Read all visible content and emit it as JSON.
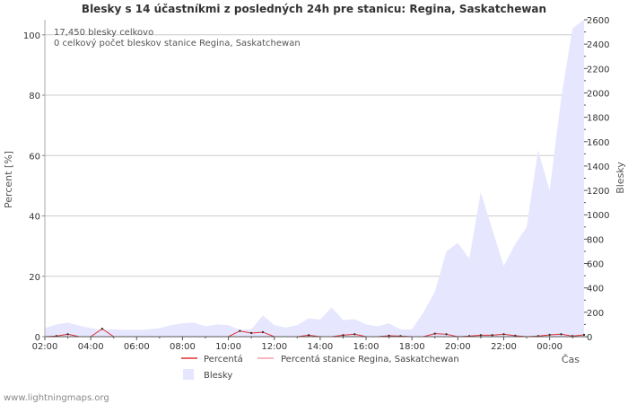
{
  "chart_data": {
    "type": "area",
    "title": "Blesky s 14 účastníkmi z posledných 24h pre stanicu: Regina, Saskatchewan",
    "info_lines": [
      "17,450 blesky celkovo",
      "0 celkový počet bleskov stanice Regina, Saskatchewan"
    ],
    "x_ticks": [
      "02:00",
      "04:00",
      "06:00",
      "08:00",
      "10:00",
      "12:00",
      "14:00",
      "16:00",
      "18:00",
      "20:00",
      "22:00",
      "00:00"
    ],
    "x_tick_hours": [
      0,
      2,
      4,
      6,
      8,
      10,
      12,
      14,
      16,
      18,
      20,
      22
    ],
    "x_range_hours": [
      0,
      23.5
    ],
    "xlabel": "Čas",
    "ylabel_left": "Percent   [%]",
    "ylabel_right": "Blesky",
    "ylim_left": [
      0,
      105
    ],
    "ylim_right": [
      0,
      2600
    ],
    "left_ticks": [
      "0",
      "20",
      "40",
      "60",
      "80",
      "100"
    ],
    "left_tick_values": [
      0,
      20,
      40,
      60,
      80,
      100
    ],
    "right_ticks": [
      "0",
      "200",
      "400",
      "600",
      "800",
      "1000",
      "1200",
      "1400",
      "1600",
      "1800",
      "2000",
      "2200",
      "2400",
      "2600"
    ],
    "right_tick_values": [
      0,
      200,
      400,
      600,
      800,
      1000,
      1200,
      1400,
      1600,
      1800,
      2000,
      2200,
      2400,
      2600
    ],
    "series": [
      {
        "name": "Blesky",
        "axis": "right",
        "color": "#e6e6ff",
        "x": [
          0,
          0.5,
          1,
          1.5,
          2,
          2.5,
          3,
          3.5,
          4,
          4.5,
          5,
          5.5,
          6,
          6.5,
          7,
          7.5,
          8,
          8.5,
          9,
          9.5,
          10,
          10.5,
          11,
          11.5,
          12,
          12.5,
          13,
          13.5,
          14,
          14.5,
          15,
          15.5,
          16,
          16.5,
          17,
          17.5,
          18,
          18.5,
          19,
          19.5,
          20,
          20.5,
          21,
          21.5,
          22,
          22.5,
          23,
          23.5
        ],
        "values": [
          70,
          100,
          115,
          90,
          70,
          55,
          60,
          55,
          55,
          60,
          70,
          95,
          110,
          115,
          85,
          100,
          95,
          55,
          60,
          175,
          95,
          75,
          95,
          150,
          140,
          240,
          135,
          145,
          100,
          85,
          110,
          60,
          60,
          200,
          370,
          700,
          770,
          640,
          1185,
          880,
          580,
          760,
          900,
          1530,
          1200,
          1950,
          2530,
          2600
        ]
      },
      {
        "name": "Percentá",
        "axis": "left",
        "color": "#e03030",
        "x": [
          0,
          0.5,
          1,
          1.5,
          2,
          2.5,
          3,
          3.5,
          4,
          4.5,
          5,
          5.5,
          6,
          6.5,
          7,
          7.5,
          8,
          8.5,
          9,
          9.5,
          10,
          10.5,
          11,
          11.5,
          12,
          12.5,
          13,
          13.5,
          14,
          14.5,
          15,
          15.5,
          16,
          16.5,
          17,
          17.5,
          18,
          18.5,
          19,
          19.5,
          20,
          20.5,
          21,
          21.5,
          22,
          22.5,
          23,
          23.5
        ],
        "values": [
          0,
          0.2,
          0.8,
          0,
          0,
          2.6,
          0,
          0,
          0,
          0,
          0,
          0,
          0,
          0,
          0,
          0,
          0,
          1.9,
          1.2,
          1.5,
          0,
          0,
          0,
          0.5,
          0,
          0,
          0.5,
          0.8,
          0,
          0,
          0.3,
          0.2,
          0,
          0,
          1,
          0.8,
          0,
          0.2,
          0.5,
          0.5,
          0.8,
          0.3,
          0,
          0.2,
          0.6,
          0.8,
          0.2,
          0.6
        ]
      },
      {
        "name": "Percentá stanice Regina, Saskatchewan",
        "axis": "left",
        "color": "#f4a0a8",
        "x": [
          0,
          23.5
        ],
        "values": [
          0,
          0
        ]
      }
    ],
    "legend_position": "bottom",
    "grid": true
  },
  "footer": {
    "source": "www.lightningmaps.org"
  }
}
